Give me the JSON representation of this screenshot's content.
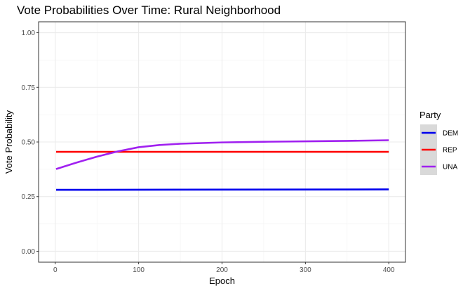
{
  "chart_data": {
    "type": "line",
    "title": "Vote Probabilities Over Time: Rural Neighborhood",
    "xlabel": "Epoch",
    "ylabel": "Vote Probability",
    "xlim": [
      -20,
      420
    ],
    "ylim": [
      -0.05,
      1.05
    ],
    "x_ticks": [
      0,
      100,
      200,
      300,
      400
    ],
    "y_ticks": [
      0.0,
      0.25,
      0.5,
      0.75,
      1.0
    ],
    "y_tick_labels": [
      "0.00",
      "0.25",
      "0.50",
      "0.75",
      "1.00"
    ],
    "grid": true,
    "legend_position": "right",
    "legend_title": "Party",
    "series": [
      {
        "name": "DEM",
        "color": "#0000ee",
        "x": [
          1,
          400
        ],
        "y": [
          0.281,
          0.283
        ]
      },
      {
        "name": "REP",
        "color": "#ff0000",
        "x": [
          1,
          400
        ],
        "y": [
          0.455,
          0.455
        ]
      },
      {
        "name": "UNA",
        "color": "#a020f0",
        "x": [
          1,
          25,
          50,
          75,
          100,
          125,
          150,
          200,
          250,
          300,
          350,
          400
        ],
        "y": [
          0.376,
          0.405,
          0.433,
          0.457,
          0.476,
          0.486,
          0.492,
          0.498,
          0.501,
          0.503,
          0.505,
          0.508
        ]
      }
    ]
  }
}
